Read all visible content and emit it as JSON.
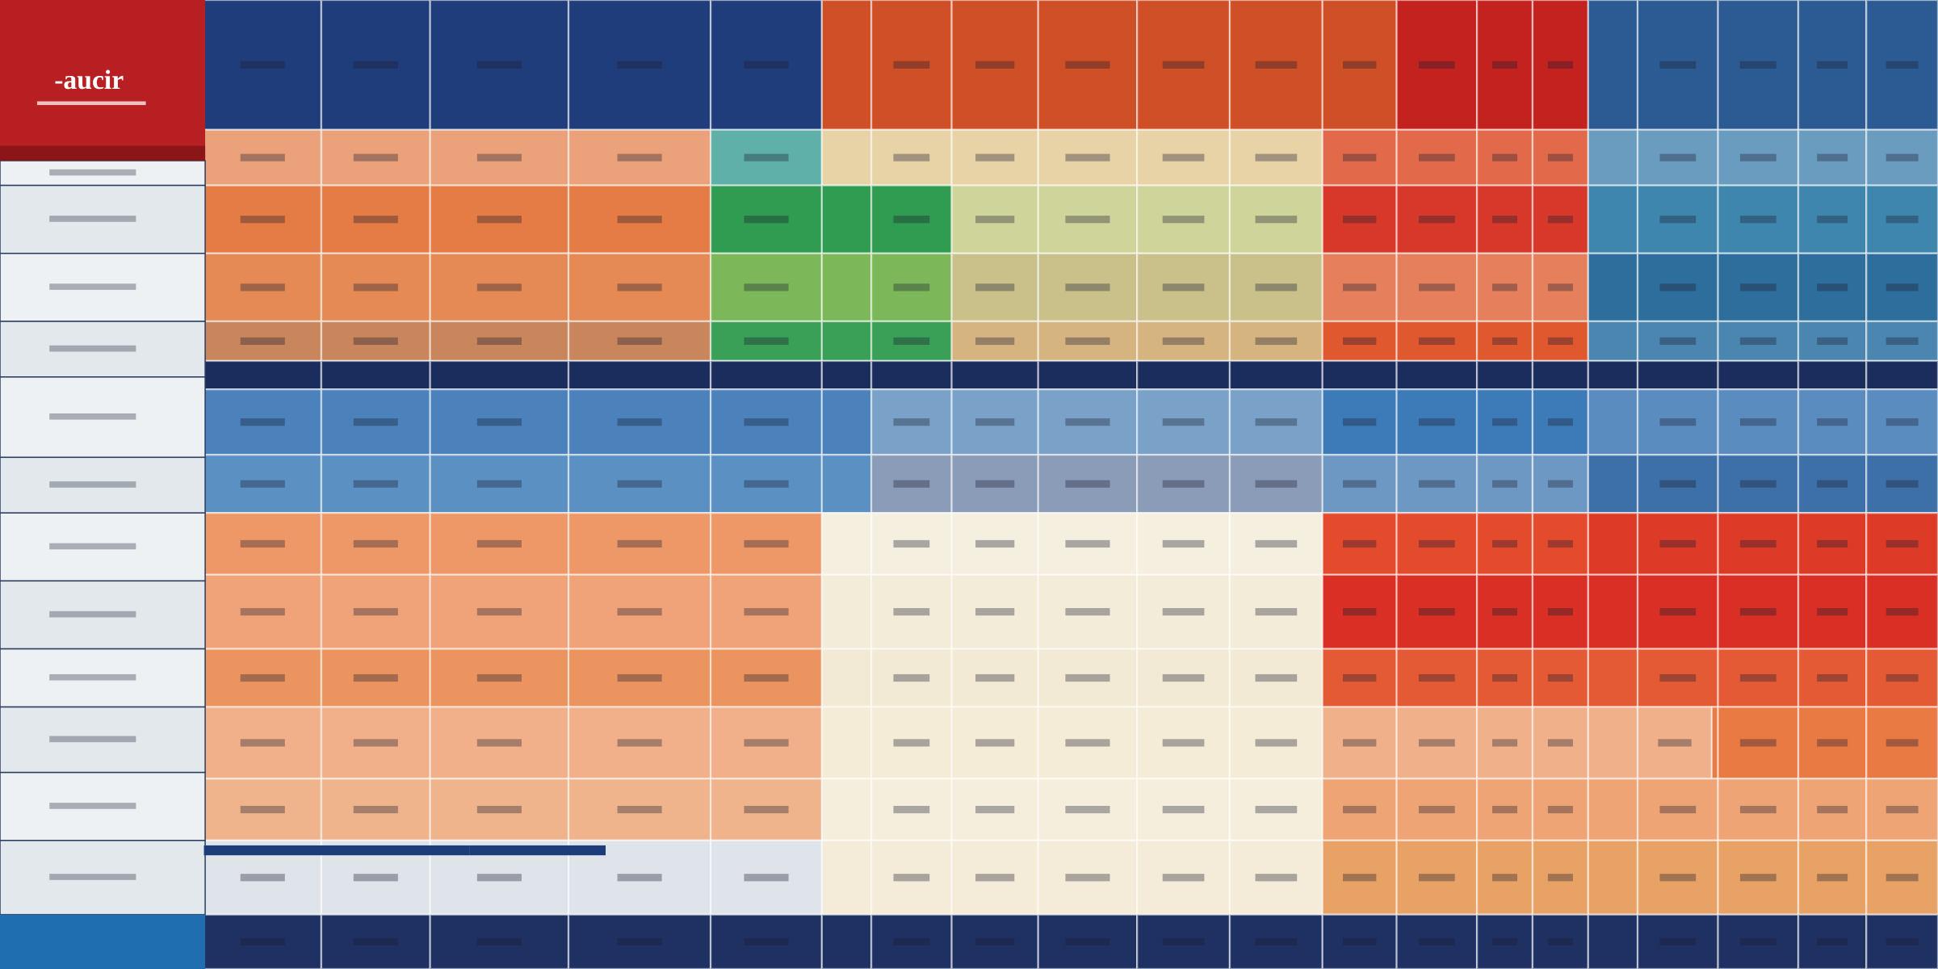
{
  "logo": {
    "text": "-aucir"
  }
}
